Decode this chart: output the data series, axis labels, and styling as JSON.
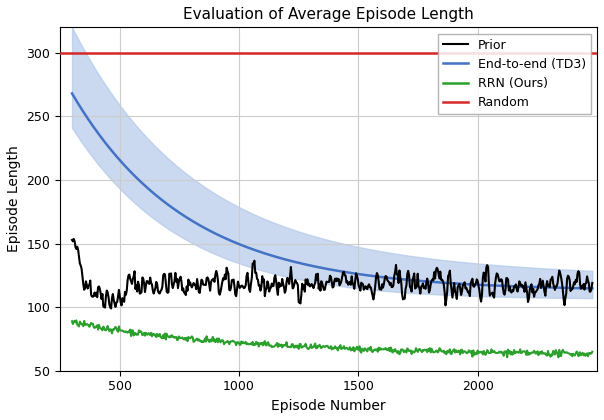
{
  "title": "Evaluation of Average Episode Length",
  "xlabel": "Episode Number",
  "ylabel": "Episode Length",
  "xlim": [
    250,
    2500
  ],
  "ylim": [
    50,
    320
  ],
  "yticks": [
    50,
    100,
    150,
    200,
    250,
    300
  ],
  "xticks": [
    500,
    1000,
    1500,
    2000
  ],
  "random_y": 300,
  "colors": {
    "prior": "#000000",
    "td3": "#4472c4",
    "td3_fill": "#aec6e8",
    "rrn": "#2ca02c",
    "random": "#d62728"
  },
  "figsize": [
    6.04,
    4.2
  ],
  "dpi": 100
}
